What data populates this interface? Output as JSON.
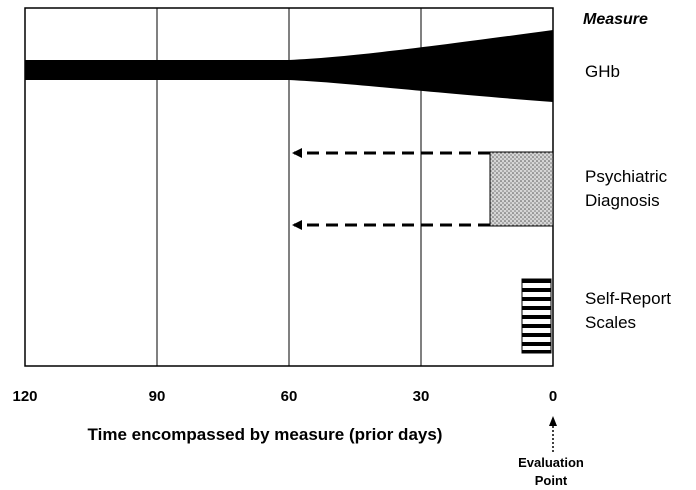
{
  "measure_header": "Measure",
  "measures": {
    "ghb": "GHb",
    "psychiatric_line1": "Psychiatric",
    "psychiatric_line2": "Diagnosis",
    "selfreport_line1": "Self-Report",
    "selfreport_line2": "Scales"
  },
  "x_axis": {
    "title": "Time encompassed by measure (prior days)",
    "ticks": [
      "120",
      "90",
      "60",
      "30",
      "0"
    ]
  },
  "evaluation_point": {
    "line1": "Evaluation",
    "line2": "Point"
  },
  "colors": {
    "ghb_band": "#000000",
    "psychiatric_fill": "#cfcfcf",
    "arrows": "#000000"
  }
}
